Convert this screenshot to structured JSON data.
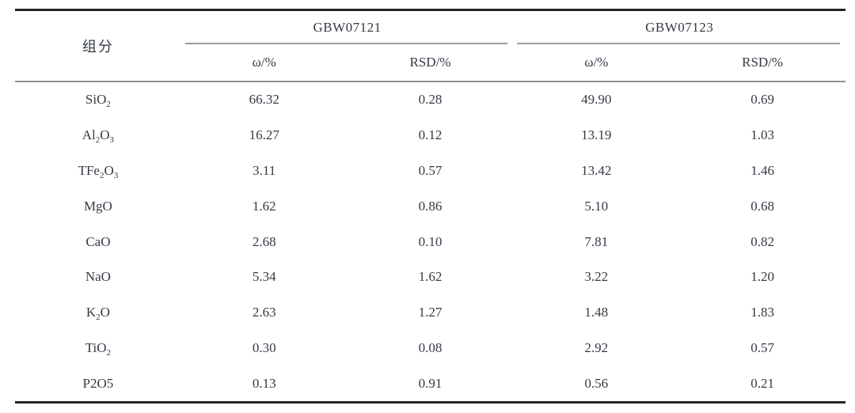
{
  "table": {
    "component_header": "组分",
    "groups": [
      {
        "label": "GBW07121",
        "subcols": [
          "ω/%",
          "RSD/%"
        ]
      },
      {
        "label": "GBW07123",
        "subcols": [
          "ω/%",
          "RSD/%"
        ]
      }
    ],
    "rows": [
      {
        "component": "SiO_2",
        "values": [
          "66.32",
          "0.28",
          "49.90",
          "0.69"
        ]
      },
      {
        "component": "Al_2O_3",
        "values": [
          "16.27",
          "0.12",
          "13.19",
          "1.03"
        ]
      },
      {
        "component": "TFe_2O_3",
        "values": [
          "3.11",
          "0.57",
          "13.42",
          "1.46"
        ]
      },
      {
        "component": "MgO",
        "values": [
          "1.62",
          "0.86",
          "5.10",
          "0.68"
        ]
      },
      {
        "component": "CaO",
        "values": [
          "2.68",
          "0.10",
          "7.81",
          "0.82"
        ]
      },
      {
        "component": "NaO",
        "values": [
          "5.34",
          "1.62",
          "3.22",
          "1.20"
        ]
      },
      {
        "component": "K_2O",
        "values": [
          "2.63",
          "1.27",
          "1.48",
          "1.83"
        ]
      },
      {
        "component": "TiO_2",
        "values": [
          "0.30",
          "0.08",
          "2.92",
          "0.57"
        ]
      },
      {
        "component": "P2O5",
        "values": [
          "0.13",
          "0.91",
          "0.56",
          "0.21"
        ]
      }
    ]
  },
  "colors": {
    "rule_dark": "#23262b",
    "rule_light": "#9a9c9e",
    "text": "#343a44",
    "background": "#ffffff"
  }
}
